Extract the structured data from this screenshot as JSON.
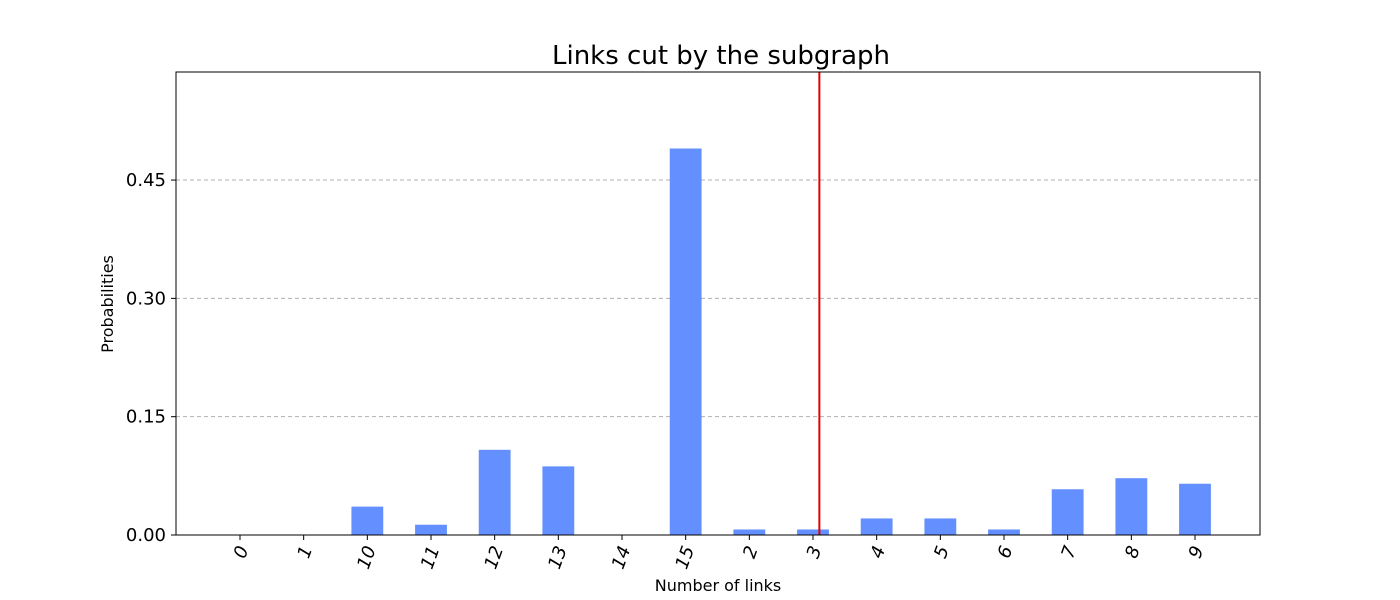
{
  "chart_data": {
    "type": "bar",
    "title": "Links cut by the subgraph",
    "xlabel": "Number of links",
    "ylabel": "Probabilities",
    "categories": [
      "0",
      "1",
      "10",
      "11",
      "12",
      "13",
      "14",
      "15",
      "2",
      "3",
      "4",
      "5",
      "6",
      "7",
      "8",
      "9"
    ],
    "values": [
      0.0,
      0.0,
      0.036,
      0.013,
      0.108,
      0.087,
      0.0,
      0.49,
      0.007,
      0.007,
      0.021,
      0.021,
      0.007,
      0.058,
      0.072,
      0.065
    ],
    "yticks": [
      "0.00",
      "0.15",
      "0.30",
      "0.45"
    ],
    "ytick_values": [
      0.0,
      0.15,
      0.3,
      0.45
    ],
    "ylim": [
      0,
      0.587
    ],
    "grid": "horizontal dashed",
    "bar_color": "#648fff",
    "reference_line": {
      "orientation": "vertical",
      "position_category": "3",
      "position_offset": 0.1,
      "color": "#e00000"
    },
    "xtick_rotation": "-70deg"
  }
}
